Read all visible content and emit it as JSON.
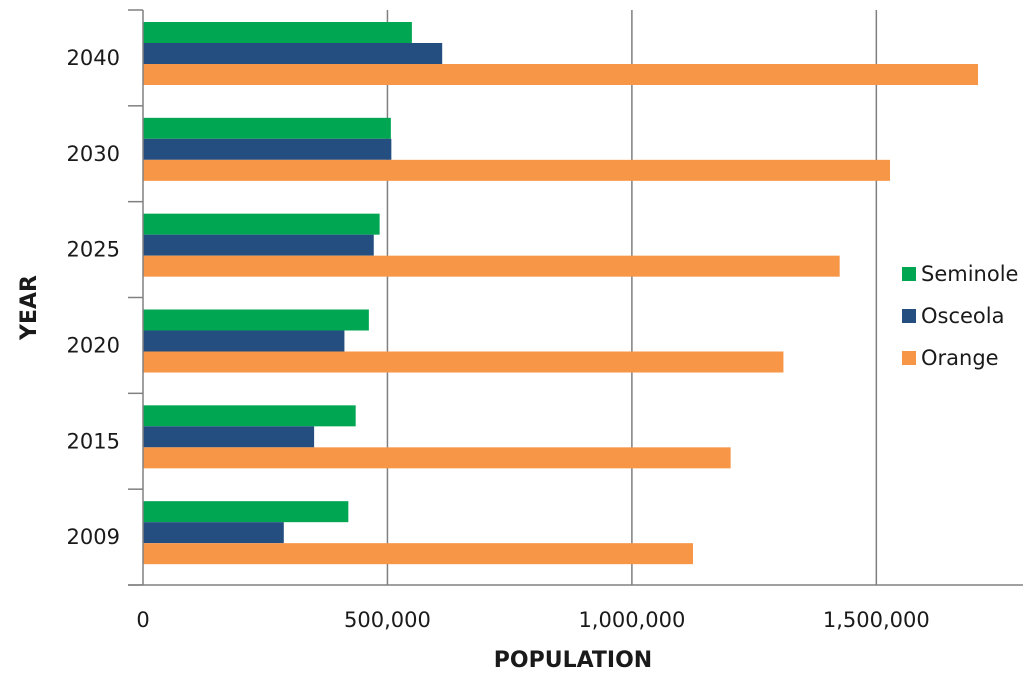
{
  "chart_data": {
    "type": "bar",
    "orientation": "horizontal",
    "categories": [
      "2009",
      "2015",
      "2020",
      "2025",
      "2030",
      "2040"
    ],
    "series": [
      {
        "name": "Seminole",
        "color": "#00a651",
        "values": [
          420000,
          435000,
          462000,
          484000,
          507000,
          550000
        ]
      },
      {
        "name": "Osceola",
        "color": "#254e80",
        "values": [
          288000,
          350000,
          412000,
          472000,
          508000,
          612000
        ]
      },
      {
        "name": "Orange",
        "color": "#f79646",
        "values": [
          1125000,
          1202000,
          1310000,
          1425000,
          1528000,
          1708000
        ]
      }
    ],
    "xlabel": "POPULATION",
    "ylabel": "YEAR",
    "xlim": [
      0,
      1800000
    ],
    "xticks": [
      0,
      500000,
      1000000,
      1500000
    ],
    "xtick_labels": [
      "0",
      "500,000",
      "1,000,000",
      "1,500,000"
    ],
    "grid": "vertical",
    "legend_placement": "right",
    "legend_order": [
      "Seminole",
      "Osceola",
      "Orange"
    ]
  }
}
